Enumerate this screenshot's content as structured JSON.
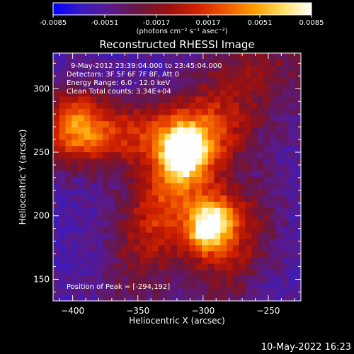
{
  "chart_data": {
    "type": "heatmap",
    "title": "Reconstructed RHESSI Image",
    "xlabel": "Heliocentric X (arcsec)",
    "ylabel": "Heliocentric Y (arcsec)",
    "xlim": [
      -415,
      -225
    ],
    "ylim": [
      133,
      328
    ],
    "xticks": [
      -400,
      -350,
      -300,
      -250
    ],
    "yticks": [
      150,
      200,
      250,
      300
    ],
    "colorbar": {
      "min": -0.0085,
      "max": 0.0085,
      "ticks": [
        "-0.0085",
        "-0.0051",
        "-0.0017",
        "0.0017",
        "0.0051",
        "0.0085"
      ],
      "label": "(photons cm⁻² s⁻¹ asec⁻²)",
      "colors": [
        "#0000ff",
        "#3a1bc0",
        "#5a1a8a",
        "#6a1640",
        "#9a1010",
        "#d02000",
        "#f05800",
        "#ff9a00",
        "#ffe060",
        "#ffffff"
      ]
    },
    "annotations": [
      "9-May-2012 23:39:04.000 to 23:45:04.000",
      "Detectors: 3F 5F 6F 7F 8F, Att 0",
      "Energy Range: 6.0 - 12.0 keV",
      "Clean    Total counts: 3.34E+04"
    ],
    "peak_label": "Position of Peak = [-294,192]",
    "sources": [
      {
        "x": -294,
        "y": 192,
        "value": 0.0085
      },
      {
        "x": -315,
        "y": 250,
        "value": 0.0072
      },
      {
        "x": -398,
        "y": 272,
        "value": 0.004
      }
    ]
  },
  "timestamp": "10-May-2022 16:23"
}
